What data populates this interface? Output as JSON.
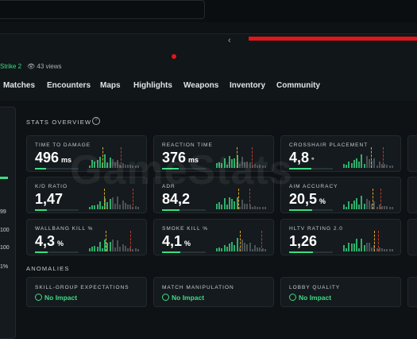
{
  "header": {
    "game": "Strike 2",
    "views": "43 views"
  },
  "nav": [
    "Matches",
    "Encounters",
    "Maps",
    "Highlights",
    "Weapons",
    "Inventory",
    "Community"
  ],
  "sidebar": [
    "99",
    "100",
    "100",
    "1%"
  ],
  "stats": {
    "title": "STATS OVERVIEW",
    "cards": [
      {
        "label": "TIME TO DAMAGE",
        "value": "496",
        "unit": "ms"
      },
      {
        "label": "REACTION TIME",
        "value": "376",
        "unit": "ms"
      },
      {
        "label": "CROSSHAIR PLACEMENT",
        "value": "4,8",
        "unit": "°"
      },
      {
        "label": "K/D RATIO",
        "value": "1,47",
        "unit": ""
      },
      {
        "label": "ADR",
        "value": "84,2",
        "unit": ""
      },
      {
        "label": "AIM ACCURACY",
        "value": "20,5",
        "unit": "%"
      },
      {
        "label": "WALLBANG KILL %",
        "value": "4,3",
        "unit": "%"
      },
      {
        "label": "SMOKE KILL %",
        "value": "4,1",
        "unit": "%"
      },
      {
        "label": "HLTV RATING 2.0",
        "value": "1,26",
        "unit": ""
      }
    ]
  },
  "anomalies": {
    "title": "ANOMALIES",
    "cards": [
      {
        "label": "SKILL-GROUP EXPECTATIONS",
        "status": "No Impact"
      },
      {
        "label": "MATCH MANIPULATION",
        "status": "No Impact"
      },
      {
        "label": "LOBBY QUALITY",
        "status": "No Impact"
      }
    ]
  }
}
